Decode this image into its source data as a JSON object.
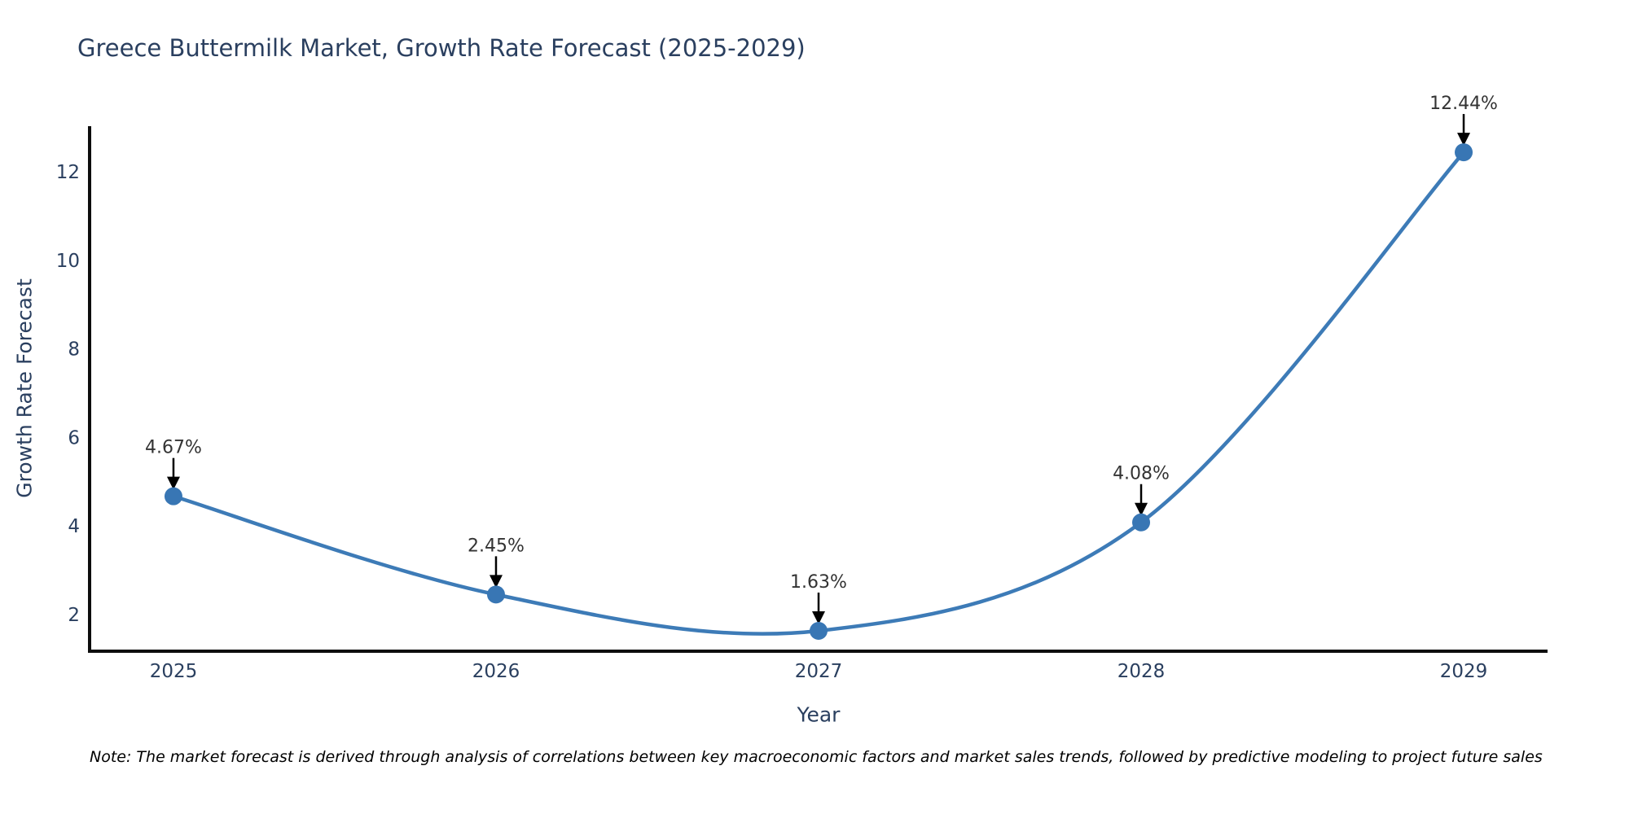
{
  "chart": {
    "title": "Greece Buttermilk Market, Growth Rate Forecast (2025-2029)",
    "xlabel": "Year",
    "ylabel": "Growth Rate Forecast",
    "note": "Note: The market forecast is derived through analysis of correlations between key macroeconomic factors and market sales trends, followed by predictive modeling to project future sales"
  },
  "chart_data": {
    "type": "line",
    "title": "Greece Buttermilk Market, Growth Rate Forecast (2025-2029)",
    "xlabel": "Year",
    "ylabel": "Growth Rate Forecast",
    "x": [
      2025,
      2026,
      2027,
      2028,
      2029
    ],
    "values": [
      4.67,
      2.45,
      1.63,
      4.08,
      12.44
    ],
    "point_labels": [
      "4.67%",
      "2.45%",
      "1.63%",
      "4.08%",
      "12.44%"
    ],
    "xticks": [
      2025,
      2026,
      2027,
      2028,
      2029
    ],
    "yticks": [
      2,
      4,
      6,
      8,
      10,
      12
    ],
    "xlim": [
      2024.74,
      2029.26
    ],
    "ylim": [
      1.17,
      13.03
    ],
    "curve": "spline",
    "grid": false,
    "legend": "none",
    "colors": {
      "line": "#3d7bb7",
      "marker": "#3876b4",
      "axis": "#0d0d0d",
      "axis_labels": "#2a3f5f",
      "tick_labels": "#2a3f5f",
      "annotation_text": "#333333",
      "annotation_arrow": "#000000"
    }
  }
}
